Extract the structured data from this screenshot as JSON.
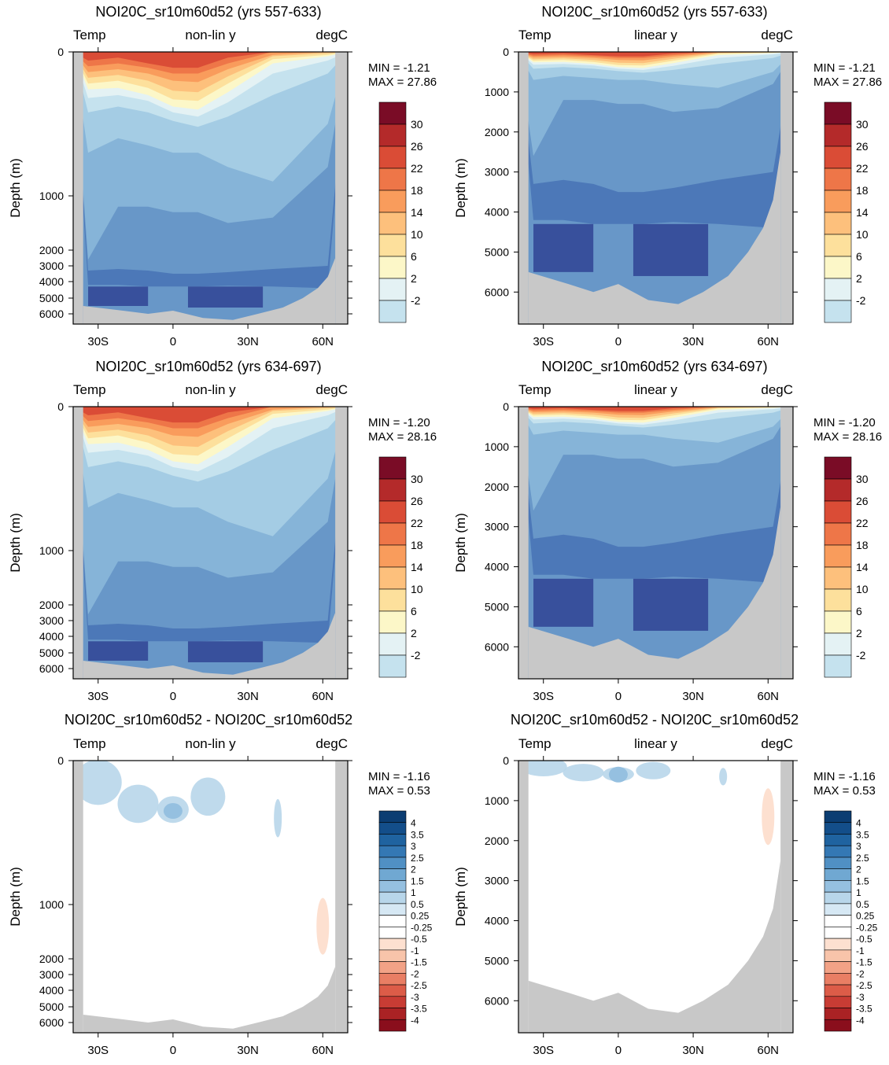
{
  "colors": {
    "land": "#c8c8c8",
    "temp_palette": [
      "#2c2a6e",
      "#38509c",
      "#4c78b8",
      "#6897c8",
      "#86b4d8",
      "#a4cce4",
      "#c5e2ee",
      "#e4f2f4",
      "#fcf7c8",
      "#fde09c",
      "#fdc07c",
      "#f99c5c",
      "#ee7648",
      "#da4c36",
      "#b42a2a",
      "#7a0c26"
    ],
    "diff_palette": [
      "#0b3d72",
      "#134e8a",
      "#1f63a0",
      "#3478b4",
      "#5090c4",
      "#70a8d2",
      "#95c0e0",
      "#b8d6ea",
      "#d6e8f4",
      "#ffffff",
      "#ffffff",
      "#fde0d0",
      "#f8c4aa",
      "#f2a286",
      "#e97e64",
      "#dc5c48",
      "#c83c34",
      "#aa2224",
      "#8a0e1c",
      "#6a0616"
    ]
  },
  "chart_data": [
    {
      "type": "heatmap",
      "title": "NOI20C_sr10m60d52 (yrs 557-633)",
      "left_label": "Temp",
      "center_label": "non-lin y",
      "right_label": "degC",
      "ylabel": "Depth (m)",
      "xticks": [
        "30S",
        "0",
        "30N",
        "60N"
      ],
      "yticks": [
        "0",
        "1000",
        "2000",
        "3000",
        "4000",
        "5000",
        "6000"
      ],
      "ylim": [
        0,
        6500
      ],
      "xlim": [
        -40,
        70
      ],
      "min_label": "MIN = -1.21",
      "max_label": "MAX = 27.86",
      "colorbar_labels": [
        "30",
        "26",
        "22",
        "18",
        "14",
        "10",
        "6",
        "2",
        "-2"
      ],
      "field": "temp",
      "scale": "nonlin"
    },
    {
      "type": "heatmap",
      "title": "NOI20C_sr10m60d52 (yrs 557-633)",
      "left_label": "Temp",
      "center_label": "linear y",
      "right_label": "degC",
      "ylabel": "Depth (m)",
      "xticks": [
        "30S",
        "0",
        "30N",
        "60N"
      ],
      "yticks": [
        "0",
        "1000",
        "2000",
        "3000",
        "4000",
        "5000",
        "6000"
      ],
      "ylim": [
        0,
        6800
      ],
      "xlim": [
        -40,
        70
      ],
      "min_label": "MIN = -1.21",
      "max_label": "MAX = 27.86",
      "colorbar_labels": [
        "30",
        "26",
        "22",
        "18",
        "14",
        "10",
        "6",
        "2",
        "-2"
      ],
      "field": "temp",
      "scale": "linear"
    },
    {
      "type": "heatmap",
      "title": "NOI20C_sr10m60d52 (yrs 634-697)",
      "left_label": "Temp",
      "center_label": "non-lin y",
      "right_label": "degC",
      "ylabel": "Depth (m)",
      "xticks": [
        "30S",
        "0",
        "30N",
        "60N"
      ],
      "yticks": [
        "0",
        "1000",
        "2000",
        "3000",
        "4000",
        "5000",
        "6000"
      ],
      "ylim": [
        0,
        6500
      ],
      "xlim": [
        -40,
        70
      ],
      "min_label": "MIN = -1.20",
      "max_label": "MAX = 28.16",
      "colorbar_labels": [
        "30",
        "26",
        "22",
        "18",
        "14",
        "10",
        "6",
        "2",
        "-2"
      ],
      "field": "temp",
      "scale": "nonlin"
    },
    {
      "type": "heatmap",
      "title": "NOI20C_sr10m60d52 (yrs 634-697)",
      "left_label": "Temp",
      "center_label": "linear y",
      "right_label": "degC",
      "ylabel": "Depth (m)",
      "xticks": [
        "30S",
        "0",
        "30N",
        "60N"
      ],
      "yticks": [
        "0",
        "1000",
        "2000",
        "3000",
        "4000",
        "5000",
        "6000"
      ],
      "ylim": [
        0,
        6800
      ],
      "xlim": [
        -40,
        70
      ],
      "min_label": "MIN = -1.20",
      "max_label": "MAX = 28.16",
      "colorbar_labels": [
        "30",
        "26",
        "22",
        "18",
        "14",
        "10",
        "6",
        "2",
        "-2"
      ],
      "field": "temp",
      "scale": "linear"
    },
    {
      "type": "heatmap",
      "title": "NOI20C_sr10m60d52 - NOI20C_sr10m60d52",
      "left_label": "Temp",
      "center_label": "non-lin y",
      "right_label": "degC",
      "ylabel": "Depth (m)",
      "xticks": [
        "30S",
        "0",
        "30N",
        "60N"
      ],
      "yticks": [
        "0",
        "1000",
        "2000",
        "3000",
        "4000",
        "5000",
        "6000"
      ],
      "ylim": [
        0,
        6500
      ],
      "xlim": [
        -40,
        70
      ],
      "min_label": "MIN = -1.16",
      "max_label": "MAX =  0.53",
      "colorbar_labels": [
        "4",
        "3.5",
        "3",
        "2.5",
        "2",
        "1.5",
        "1",
        "0.5",
        "0.25",
        "-0.25",
        "-0.5",
        "-1",
        "-1.5",
        "-2",
        "-2.5",
        "-3",
        "-3.5",
        "-4"
      ],
      "field": "diff",
      "scale": "nonlin"
    },
    {
      "type": "heatmap",
      "title": "NOI20C_sr10m60d52 - NOI20C_sr10m60d52",
      "left_label": "Temp",
      "center_label": "linear y",
      "right_label": "degC",
      "ylabel": "Depth (m)",
      "xticks": [
        "30S",
        "0",
        "30N",
        "60N"
      ],
      "yticks": [
        "0",
        "1000",
        "2000",
        "3000",
        "4000",
        "5000",
        "6000"
      ],
      "ylim": [
        0,
        6800
      ],
      "xlim": [
        -40,
        70
      ],
      "min_label": "MIN = -1.16",
      "max_label": "MAX =  0.53",
      "colorbar_labels": [
        "4",
        "3.5",
        "3",
        "2.5",
        "2",
        "1.5",
        "1",
        "0.5",
        "0.25",
        "-0.25",
        "-0.5",
        "-1",
        "-1.5",
        "-2",
        "-2.5",
        "-3",
        "-3.5",
        "-4"
      ],
      "field": "diff",
      "scale": "linear"
    }
  ]
}
